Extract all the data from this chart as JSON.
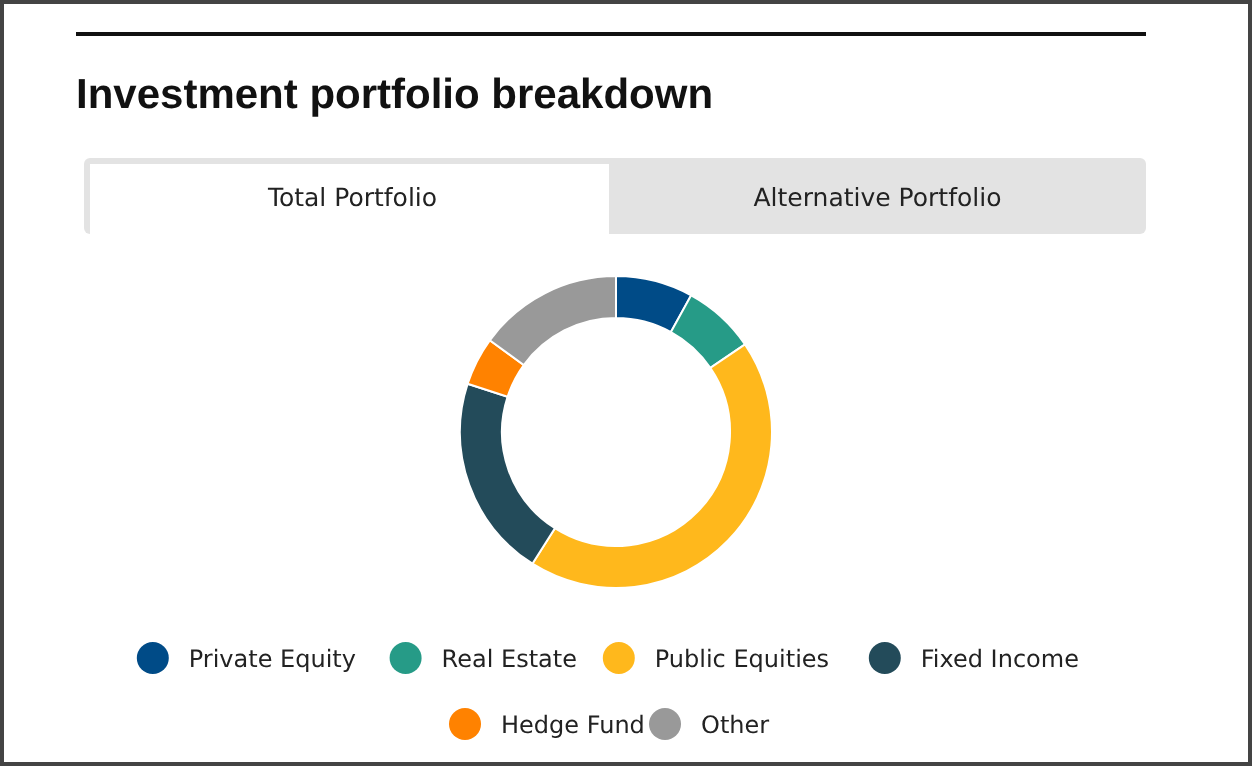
{
  "chart_data": {
    "type": "donut",
    "title": "Investment portfolio breakdown",
    "annotations": [
      "Total Portfolio",
      "Alternative Portfolio"
    ],
    "categories": [
      "Private Equity",
      "Real Estate",
      "Public Equities",
      "Fixed Income",
      "Hedge Fund",
      "Other"
    ],
    "values": [
      8,
      7.5,
      43.5,
      21,
      5,
      15
    ],
    "colors": [
      "#004b87",
      "#269b87",
      "#ffb81c",
      "#234b5a",
      "#ff8200",
      "#999999"
    ],
    "legend": "bottom"
  }
}
